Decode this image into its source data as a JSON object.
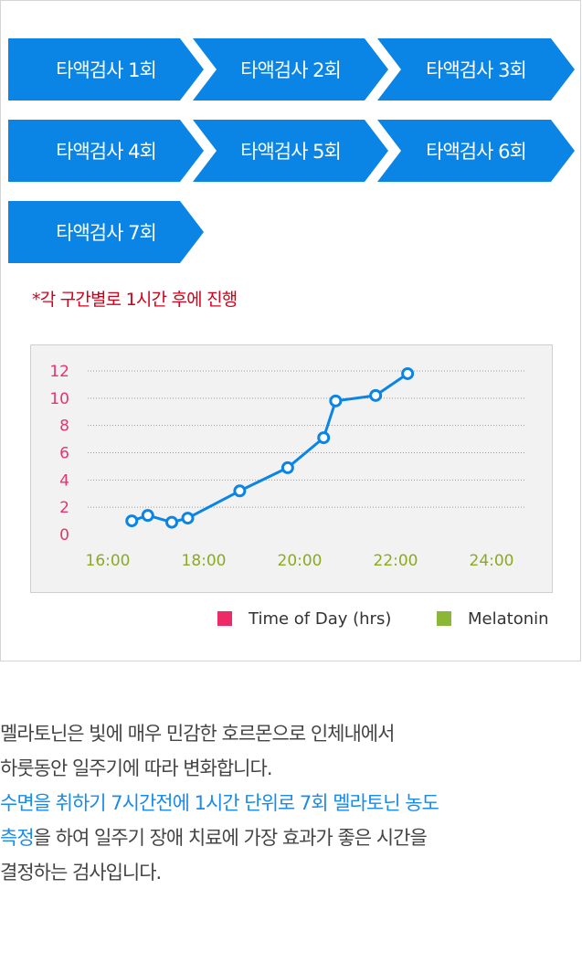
{
  "steps": [
    {
      "label": "타액검사 1회"
    },
    {
      "label": "타액검사 2회"
    },
    {
      "label": "타액검사 3회"
    },
    {
      "label": "타액검사 4회"
    },
    {
      "label": "타액검사 5회"
    },
    {
      "label": "타액검사 6회"
    },
    {
      "label": "타액검사 7회"
    }
  ],
  "note": "*각 구간별로 1시간 후에 진행",
  "colors": {
    "step_bg": "#0a85e6",
    "note": "#d0021b",
    "line": "#0a85e6",
    "y_tick": "#e8336b",
    "x_tick": "#8aab1f",
    "legend_time": "#ee2b67",
    "legend_melatonin": "#8ab834",
    "highlight_text": "#1a8be8"
  },
  "chart_data": {
    "type": "line",
    "x_tick_labels": [
      "16:00",
      "18:00",
      "20:00",
      "22:00",
      "24:00"
    ],
    "y_tick_labels": [
      "12",
      "10",
      "8",
      "6",
      "4",
      "2",
      "0"
    ],
    "ylim": [
      0,
      12
    ],
    "xlim": [
      "16:00",
      "24:00"
    ],
    "grid": "dotted horizontal",
    "legend_position": "bottom-right",
    "series": [
      {
        "x": [
          "16:30",
          "16:50",
          "17:20",
          "17:40",
          "18:45",
          "19:45",
          "20:30",
          "20:45",
          "21:35",
          "22:15"
        ],
        "values": [
          1.0,
          1.4,
          0.9,
          1.2,
          3.2,
          4.9,
          7.1,
          9.8,
          10.2,
          11.8
        ]
      }
    ],
    "legend": [
      {
        "label": "Time of Day (hrs)",
        "color": "#ee2b67"
      },
      {
        "label": "Melatonin",
        "color": "#8ab834"
      }
    ]
  },
  "description": {
    "line1": "멜라토닌은 빛에 매우 민감한 호르몬으로 인체내에서",
    "line2": "하룻동안 일주기에 따라 변화합니다.",
    "line3": "수면을 취하기 7시간전에 1시간 단위로 7회 멜라토닌 농도",
    "line4_hl": "측정",
    "line4_rest": "을 하여 일주기 장애 치료에 가장 효과가 좋은 시간을",
    "line5": "결정하는 검사입니다."
  }
}
